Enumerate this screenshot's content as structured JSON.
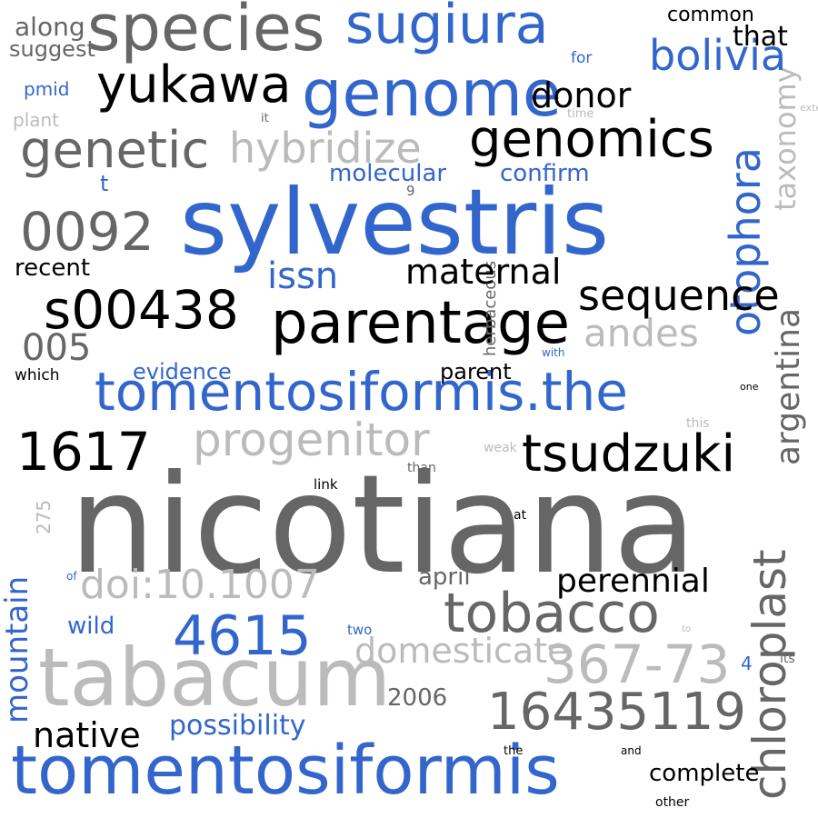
{
  "palette": {
    "blue": "#3366cc",
    "dark": "#666666",
    "black": "#000000",
    "light": "#bbbbbb"
  },
  "words": [
    {
      "text": "nicotiana",
      "color": "dark"
    },
    {
      "text": "sylvestris",
      "color": "blue"
    },
    {
      "text": "tabacum",
      "color": "light"
    },
    {
      "text": "tomentosiformis",
      "color": "blue"
    },
    {
      "text": "tomentosiformis.the",
      "color": "blue"
    },
    {
      "text": "species",
      "color": "dark"
    },
    {
      "text": "genome",
      "color": "blue"
    },
    {
      "text": "sugiura",
      "color": "blue"
    },
    {
      "text": "yukawa",
      "color": "black"
    },
    {
      "text": "genomics",
      "color": "black"
    },
    {
      "text": "genetic",
      "color": "dark"
    },
    {
      "text": "hybridize",
      "color": "light"
    },
    {
      "text": "parentage",
      "color": "black"
    },
    {
      "text": "s00438",
      "color": "black"
    },
    {
      "text": "0092",
      "color": "dark"
    },
    {
      "text": "tobacco",
      "color": "dark"
    },
    {
      "text": "tsudzuki",
      "color": "black"
    },
    {
      "text": "1617",
      "color": "black"
    },
    {
      "text": "progenitor",
      "color": "light"
    },
    {
      "text": "4615",
      "color": "blue"
    },
    {
      "text": "16435119",
      "color": "dark"
    },
    {
      "text": "367-73",
      "color": "light"
    },
    {
      "text": "doi:10.1007",
      "color": "light"
    },
    {
      "text": "otophora",
      "color": "blue"
    },
    {
      "text": "chloroplast",
      "color": "dark"
    },
    {
      "text": "argentina",
      "color": "dark"
    },
    {
      "text": "taxonomy",
      "color": "light"
    },
    {
      "text": "mountain",
      "color": "blue"
    },
    {
      "text": "275",
      "color": "light"
    },
    {
      "text": "herbaceous",
      "color": "dark"
    },
    {
      "text": "donor",
      "color": "black"
    },
    {
      "text": "bolivia",
      "color": "blue"
    },
    {
      "text": "005",
      "color": "dark"
    },
    {
      "text": "issn",
      "color": "blue"
    },
    {
      "text": "maternal",
      "color": "black"
    },
    {
      "text": "sequence",
      "color": "black"
    },
    {
      "text": "andes",
      "color": "light"
    },
    {
      "text": "perennial",
      "color": "black"
    },
    {
      "text": "domesticate",
      "color": "light"
    },
    {
      "text": "native",
      "color": "black"
    },
    {
      "text": "possibility",
      "color": "blue"
    },
    {
      "text": "complete",
      "color": "black"
    },
    {
      "text": "recent",
      "color": "black"
    },
    {
      "text": "molecular",
      "color": "blue"
    },
    {
      "text": "confirm",
      "color": "blue"
    },
    {
      "text": "evidence",
      "color": "blue"
    },
    {
      "text": "parent",
      "color": "black"
    },
    {
      "text": "april",
      "color": "dark"
    },
    {
      "text": "wild",
      "color": "blue"
    },
    {
      "text": "2006",
      "color": "dark"
    },
    {
      "text": "along",
      "color": "dark"
    },
    {
      "text": "suggest",
      "color": "dark"
    },
    {
      "text": "pmid",
      "color": "blue"
    },
    {
      "text": "plant",
      "color": "light"
    },
    {
      "text": "t",
      "color": "blue"
    },
    {
      "text": "common",
      "color": "black"
    },
    {
      "text": "that",
      "color": "black"
    },
    {
      "text": "for",
      "color": "blue"
    },
    {
      "text": "it",
      "color": "dark"
    },
    {
      "text": "time",
      "color": "light"
    },
    {
      "text": "external",
      "color": "light"
    },
    {
      "text": "9",
      "color": "dark"
    },
    {
      "text": "which",
      "color": "black"
    },
    {
      "text": "with",
      "color": "blue"
    },
    {
      "text": "one",
      "color": "black"
    },
    {
      "text": "this",
      "color": "light"
    },
    {
      "text": "weak",
      "color": "light"
    },
    {
      "text": "than",
      "color": "dark"
    },
    {
      "text": "link",
      "color": "black"
    },
    {
      "text": "at",
      "color": "black"
    },
    {
      "text": "of",
      "color": "blue"
    },
    {
      "text": "two",
      "color": "blue"
    },
    {
      "text": "to",
      "color": "light"
    },
    {
      "text": "4",
      "color": "blue"
    },
    {
      "text": "its",
      "color": "dark"
    },
    {
      "text": "the",
      "color": "black"
    },
    {
      "text": "and",
      "color": "black"
    },
    {
      "text": "other",
      "color": "black"
    }
  ]
}
